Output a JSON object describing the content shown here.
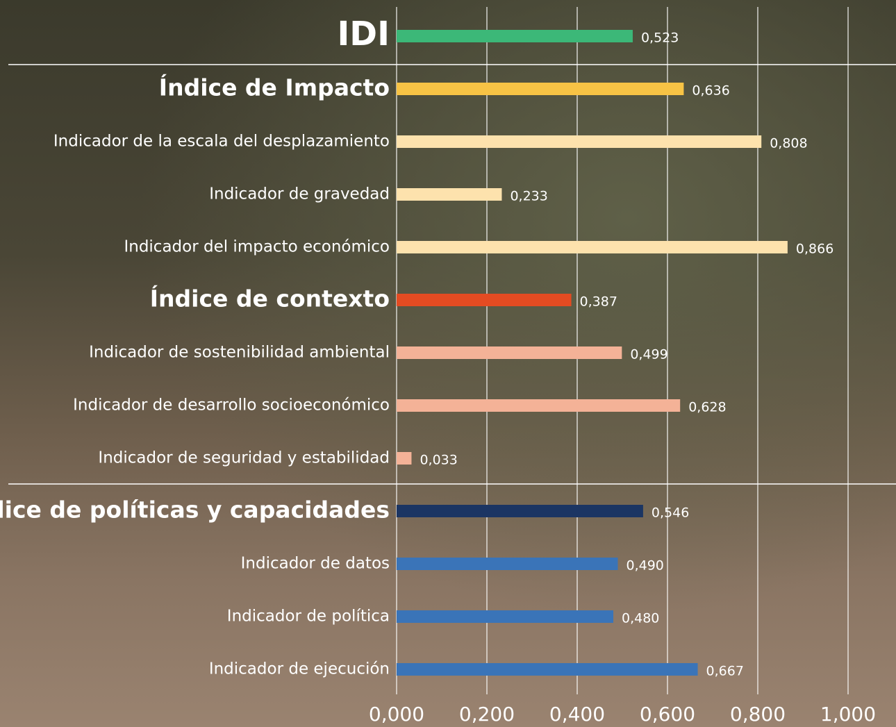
{
  "chart_data": {
    "type": "bar",
    "orientation": "horizontal",
    "categories": [
      "IDI",
      "Índice de Impacto",
      "Indicador de la escala del desplazamiento",
      "Indicador de gravedad",
      "Indicador del impacto económico",
      "Índice de contexto",
      "Indicador de sostenibilidad ambiental",
      "Indicador de desarrollo socioeconómico",
      "Indicador de seguridad y estabilidad",
      "Índice de políticas y capacidades",
      "Indicador de datos",
      "Indicador de política",
      "Indicador de ejecución"
    ],
    "levels": [
      0,
      1,
      2,
      2,
      2,
      1,
      2,
      2,
      2,
      1,
      2,
      2,
      2
    ],
    "values": [
      0.523,
      0.636,
      0.808,
      0.233,
      0.866,
      0.387,
      0.499,
      0.628,
      0.033,
      0.546,
      0.49,
      0.48,
      0.667
    ],
    "value_labels": [
      "0,523",
      "0,636",
      "0,808",
      "0,233",
      "0,866",
      "0,387",
      "0,499",
      "0,628",
      "0,033",
      "0,546",
      "0,490",
      "0,480",
      "0,667"
    ],
    "colors": [
      "#3cb878",
      "#f7c345",
      "#fde2ad",
      "#fde2ad",
      "#fde2ad",
      "#e44b22",
      "#f4b297",
      "#f4b297",
      "#f4b297",
      "#1b3563",
      "#3a74b8",
      "#3a74b8",
      "#3a74b8"
    ],
    "xlim": [
      0,
      1
    ],
    "xticks": [
      {
        "value": 0,
        "label": "0,000"
      },
      {
        "value": 0.2,
        "label": "0,200"
      },
      {
        "value": 0.4,
        "label": "0,400"
      },
      {
        "value": 0.6,
        "label": "0,600"
      },
      {
        "value": 0.8,
        "label": "0,800"
      },
      {
        "value": 1,
        "label": "1,000"
      }
    ],
    "grid": true
  }
}
